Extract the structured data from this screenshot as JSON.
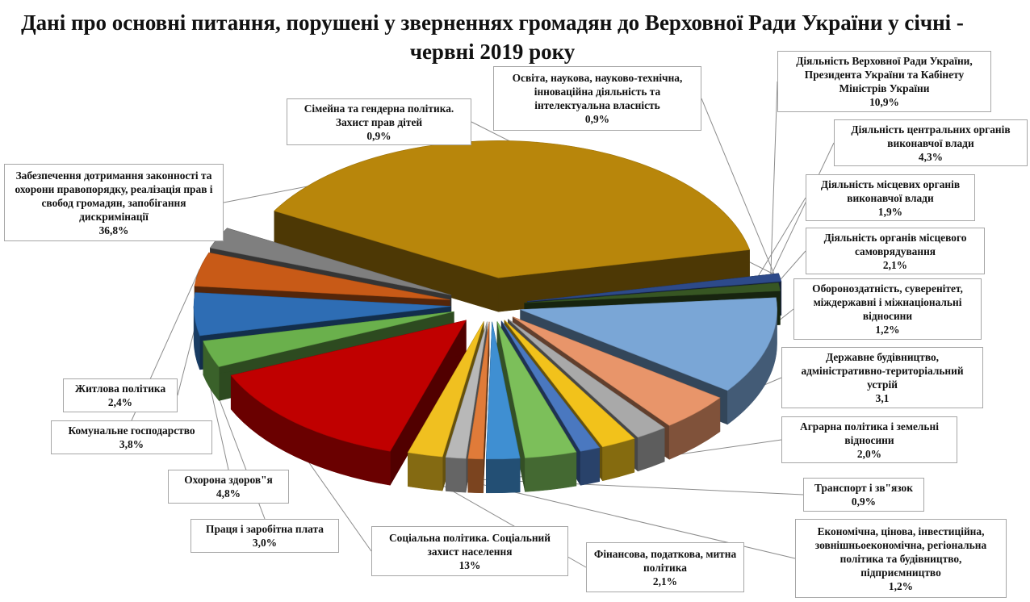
{
  "chart_data": {
    "type": "pie",
    "style": "3d-exploded",
    "title": "Дані про основні питання, порушені у зверненнях громадян до Верховної Ради України у січні - червні 2019 року",
    "slices": [
      {
        "label": "Діяльність Верховної Ради України, Президента України та Кабінету Міністрів України",
        "value": 10.9,
        "display": "10,9%",
        "color": "#7aa6d6"
      },
      {
        "label": "Діяльність центральних органів виконавчої влади",
        "value": 4.3,
        "display": "4,3%",
        "color": "#e8956a"
      },
      {
        "label": "Діяльність місцевих органів виконавчої влади",
        "value": 1.9,
        "display": "1,9%",
        "color": "#a9a9a9"
      },
      {
        "label": "Діяльність органів місцевого самоврядування",
        "value": 2.1,
        "display": "2,1%",
        "color": "#f2c21b"
      },
      {
        "label": "Обороноздатність, суверенітет, міждержавні і міжнаціональні відносини",
        "value": 1.2,
        "display": "1,2%",
        "color": "#4a78c0"
      },
      {
        "label": "Державне будівництво, адміністративно-територіальний устрій",
        "value": 3.1,
        "display": "3,1",
        "color": "#7cbf5a"
      },
      {
        "label": "Аграрна політика і земельні відносини",
        "value": 2.0,
        "display": "2,0%",
        "color": "#3f8fd2"
      },
      {
        "label": "Транспорт і зв\"язок",
        "value": 0.9,
        "display": "0,9%",
        "color": "#e07b39"
      },
      {
        "label": "Економічна, цінова, інвестиційна, зовнішньоекономічна, регіональна політика та будівництво, підприємництво",
        "value": 1.2,
        "display": "1,2%",
        "color": "#b8b8b8"
      },
      {
        "label": "Фінансова, податкова, митна політика",
        "value": 2.1,
        "display": "2,1%",
        "color": "#f0c020"
      },
      {
        "label": "Соціальна політика. Соціальний захист населення",
        "value": 13,
        "display": "13%",
        "color": "#c00000"
      },
      {
        "label": "Праця і заробітна плата",
        "value": 3.0,
        "display": "3,0%",
        "color": "#6ab04c"
      },
      {
        "label": "Охорона здоров\"я",
        "value": 4.8,
        "display": "4,8%",
        "color": "#2e6db4"
      },
      {
        "label": "Комунальне господарство",
        "value": 3.8,
        "display": "3,8%",
        "color": "#c85a17"
      },
      {
        "label": "Житлова політика",
        "value": 2.4,
        "display": "2,4%",
        "color": "#7f7f7f"
      },
      {
        "label": "Забезпечення дотримання законності та охорони правопорядку, реалізація прав і свобод громадян, запобігання дискримінації",
        "value": 36.8,
        "display": "36,8%",
        "color": "#b8860b"
      },
      {
        "label": "Сімейна та гендерна політика. Захист прав дітей",
        "value": 0.9,
        "display": "0,9%",
        "color": "#2d4a8a"
      },
      {
        "label": "Освіта, наукова, науково-технічна, інноваційна діяльність та інтелектуальна власність",
        "value": 0.9,
        "display": "0,9%",
        "color": "#375623"
      }
    ]
  }
}
